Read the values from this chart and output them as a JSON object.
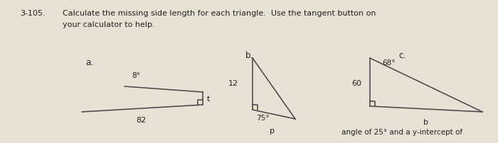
{
  "background_color": "#e8e2d6",
  "problem_number": "3-105.",
  "main_text_line1": "Calculate the missing side length for each triangle.  Use the tangent button on",
  "main_text_line2": "your calculator to help.",
  "bottom_text": "angle of 25° and a y-intercept of",
  "sub_labels": [
    "a.",
    "b.",
    "c."
  ],
  "triangle_a": {
    "angle": "8°",
    "base_label": "82",
    "side_label": "t",
    "right_angle": true
  },
  "triangle_b": {
    "angle": "75°",
    "vert_label": "12",
    "horiz_label": "p",
    "right_angle": true
  },
  "triangle_c": {
    "angle": "68°",
    "vert_label": "60",
    "horiz_label": "b",
    "right_angle": true
  }
}
